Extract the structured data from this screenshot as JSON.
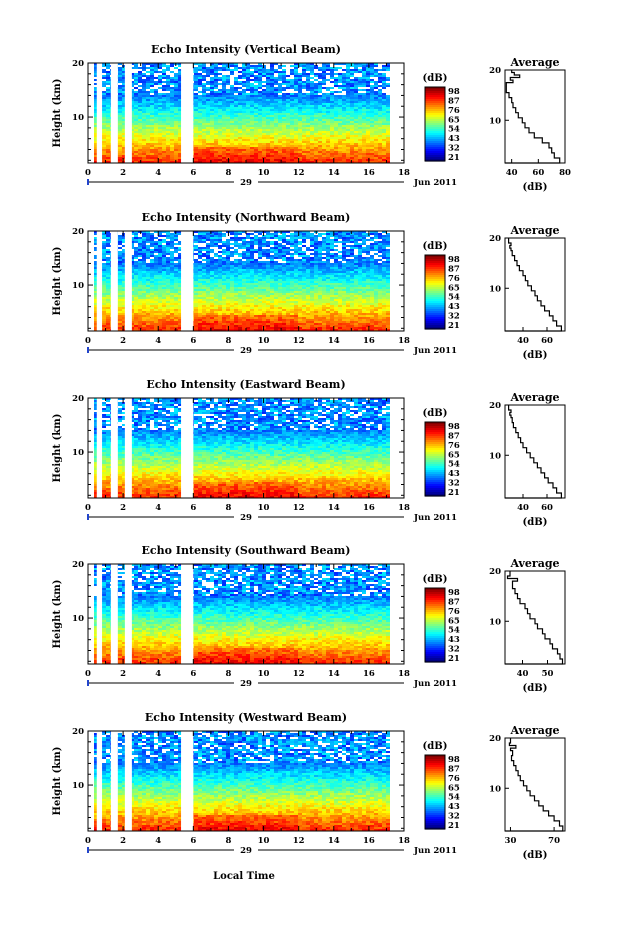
{
  "chart_data": [
    {
      "type": "heatmap",
      "title": "Echo Intensity (Vertical Beam)",
      "ylabel": "Height (km)",
      "ylim": [
        1.5,
        20
      ],
      "yticks": [
        10,
        20
      ],
      "xlim": [
        0,
        18
      ],
      "xticks": [
        0,
        2,
        4,
        6,
        8,
        10,
        12,
        14,
        16,
        18
      ],
      "date_day": "29",
      "date_month_year": "Jun 2011",
      "colorbar": {
        "label": "(dB)",
        "ticks": [
          21,
          32,
          43,
          54,
          65,
          76,
          87,
          98
        ]
      },
      "data_gaps_hours": [
        [
          0.5,
          0.8
        ],
        [
          1.3,
          1.7
        ],
        [
          2.1,
          2.5
        ],
        [
          5.3,
          6.0
        ]
      ],
      "average_profile": {
        "title": "Average",
        "xlabel": "(dB)",
        "xlim": [
          35,
          80
        ],
        "xticks": [
          40,
          60,
          80
        ],
        "ylim": [
          1.5,
          20
        ],
        "yticks": [
          10,
          20
        ],
        "x": [
          35,
          76,
          72,
          70,
          68,
          63,
          57,
          53,
          50,
          48,
          45,
          43,
          41,
          40,
          38,
          36,
          36,
          41,
          39,
          46,
          42,
          40
        ],
        "y": [
          1.5,
          2.5,
          3.5,
          4.5,
          5.5,
          6.5,
          7.5,
          8.5,
          9.5,
          10.5,
          11.5,
          12.5,
          13.5,
          14.5,
          15.5,
          16.5,
          17.5,
          18,
          18.5,
          19,
          19.5,
          20
        ]
      }
    },
    {
      "type": "heatmap",
      "title": "Echo Intensity (Northward Beam)",
      "ylabel": "Height (km)",
      "ylim": [
        1.5,
        20
      ],
      "yticks": [
        10,
        20
      ],
      "xlim": [
        0,
        18
      ],
      "xticks": [
        0,
        2,
        4,
        6,
        8,
        10,
        12,
        14,
        16,
        18
      ],
      "date_day": "29",
      "date_month_year": "Jun 2011",
      "colorbar": {
        "label": "(dB)",
        "ticks": [
          21,
          32,
          43,
          54,
          65,
          76,
          87,
          98
        ]
      },
      "data_gaps_hours": [
        [
          0.5,
          0.8
        ],
        [
          1.3,
          1.7
        ],
        [
          2.1,
          2.5
        ],
        [
          5.3,
          6.0
        ]
      ],
      "average_profile": {
        "title": "Average",
        "xlabel": "(dB)",
        "xlim": [
          25,
          75
        ],
        "xticks": [
          40,
          60
        ],
        "ylim": [
          1.5,
          20
        ],
        "yticks": [
          10,
          20
        ],
        "x": [
          25,
          72,
          68,
          65,
          62,
          58,
          55,
          52,
          50,
          47,
          44,
          42,
          40,
          37,
          35,
          33,
          31,
          30,
          29,
          30,
          28
        ],
        "y": [
          1.5,
          2.5,
          3.5,
          4.5,
          5.5,
          6.5,
          7.5,
          8.5,
          9.5,
          10.5,
          11.5,
          12.5,
          13.5,
          14.5,
          15.5,
          16.5,
          17.5,
          18,
          18.5,
          19,
          20
        ]
      }
    },
    {
      "type": "heatmap",
      "title": "Echo Intensity (Eastward Beam)",
      "ylabel": "Height (km)",
      "ylim": [
        1.5,
        20
      ],
      "yticks": [
        10,
        20
      ],
      "xlim": [
        0,
        18
      ],
      "xticks": [
        0,
        2,
        4,
        6,
        8,
        10,
        12,
        14,
        16,
        18
      ],
      "date_day": "29",
      "date_month_year": "Jun 2011",
      "colorbar": {
        "label": "(dB)",
        "ticks": [
          21,
          32,
          43,
          54,
          65,
          76,
          87,
          98
        ]
      },
      "data_gaps_hours": [
        [
          0.5,
          0.8
        ],
        [
          1.3,
          1.7
        ],
        [
          2.1,
          2.5
        ],
        [
          5.3,
          6.0
        ]
      ],
      "average_profile": {
        "title": "Average",
        "xlabel": "(dB)",
        "xlim": [
          25,
          75
        ],
        "xticks": [
          40,
          60
        ],
        "ylim": [
          1.5,
          20
        ],
        "yticks": [
          10,
          20
        ],
        "x": [
          25,
          72,
          68,
          65,
          61,
          58,
          55,
          52,
          49,
          46,
          43,
          40,
          38,
          36,
          34,
          32,
          31,
          30,
          29,
          30,
          28
        ],
        "y": [
          1.5,
          2.5,
          3.5,
          4.5,
          5.5,
          6.5,
          7.5,
          8.5,
          9.5,
          10.5,
          11.5,
          12.5,
          13.5,
          14.5,
          15.5,
          16.5,
          17.5,
          18,
          18.5,
          19,
          20
        ]
      }
    },
    {
      "type": "heatmap",
      "title": "Echo Intensity (Southward Beam)",
      "ylabel": "Height (km)",
      "ylim": [
        1.5,
        20
      ],
      "yticks": [
        10,
        20
      ],
      "xlim": [
        0,
        18
      ],
      "xticks": [
        0,
        2,
        4,
        6,
        8,
        10,
        12,
        14,
        16,
        18
      ],
      "date_day": "29",
      "date_month_year": "Jun 2011",
      "colorbar": {
        "label": "(dB)",
        "ticks": [
          21,
          32,
          43,
          54,
          65,
          76,
          87,
          98
        ]
      },
      "data_gaps_hours": [
        [
          0.5,
          0.8
        ],
        [
          1.3,
          1.7
        ],
        [
          2.1,
          2.5
        ],
        [
          5.3,
          6.0
        ]
      ],
      "average_profile": {
        "title": "Average",
        "xlabel": "(dB)",
        "xlim": [
          33,
          57
        ],
        "xticks": [
          40,
          50
        ],
        "ylim": [
          1.5,
          20
        ],
        "yticks": [
          10,
          20
        ],
        "x": [
          33,
          56,
          55,
          54,
          52,
          51,
          49,
          48,
          46,
          45,
          43,
          42,
          41,
          39,
          38,
          37,
          36,
          36,
          38,
          34,
          35
        ],
        "y": [
          1.5,
          2.5,
          3.5,
          4.5,
          5.5,
          6.5,
          7.5,
          8.5,
          9.5,
          10.5,
          11.5,
          12.5,
          13.5,
          14.5,
          15.5,
          16.5,
          17.5,
          18,
          18.5,
          19,
          20
        ]
      }
    },
    {
      "type": "heatmap",
      "title": "Echo Intensity (Westward Beam)",
      "ylabel": "Height (km)",
      "ylim": [
        1.5,
        20
      ],
      "yticks": [
        10,
        20
      ],
      "xlim": [
        0,
        18
      ],
      "xticks": [
        0,
        2,
        4,
        6,
        8,
        10,
        12,
        14,
        16,
        18
      ],
      "date_day": "29",
      "date_month_year": "Jun 2011",
      "colorbar": {
        "label": "(dB)",
        "ticks": [
          21,
          32,
          43,
          54,
          65,
          76,
          87,
          98
        ]
      },
      "data_gaps_hours": [
        [
          0.5,
          0.8
        ],
        [
          1.3,
          1.7
        ],
        [
          2.1,
          2.5
        ],
        [
          5.3,
          6.0
        ]
      ],
      "average_profile": {
        "title": "Average",
        "xlabel": "(dB)",
        "xlim": [
          25,
          80
        ],
        "xticks": [
          30,
          70
        ],
        "ylim": [
          1.5,
          20
        ],
        "yticks": [
          10,
          20
        ],
        "x": [
          25,
          78,
          75,
          70,
          65,
          60,
          56,
          52,
          48,
          45,
          42,
          39,
          37,
          35,
          33,
          31,
          32,
          30,
          35,
          29,
          30
        ],
        "y": [
          1.5,
          2.5,
          3.5,
          4.5,
          5.5,
          6.5,
          7.5,
          8.5,
          9.5,
          10.5,
          11.5,
          12.5,
          13.5,
          14.5,
          15.5,
          16.5,
          17.5,
          18,
          18.5,
          19,
          20
        ]
      }
    }
  ],
  "xlabel": "Local Time"
}
